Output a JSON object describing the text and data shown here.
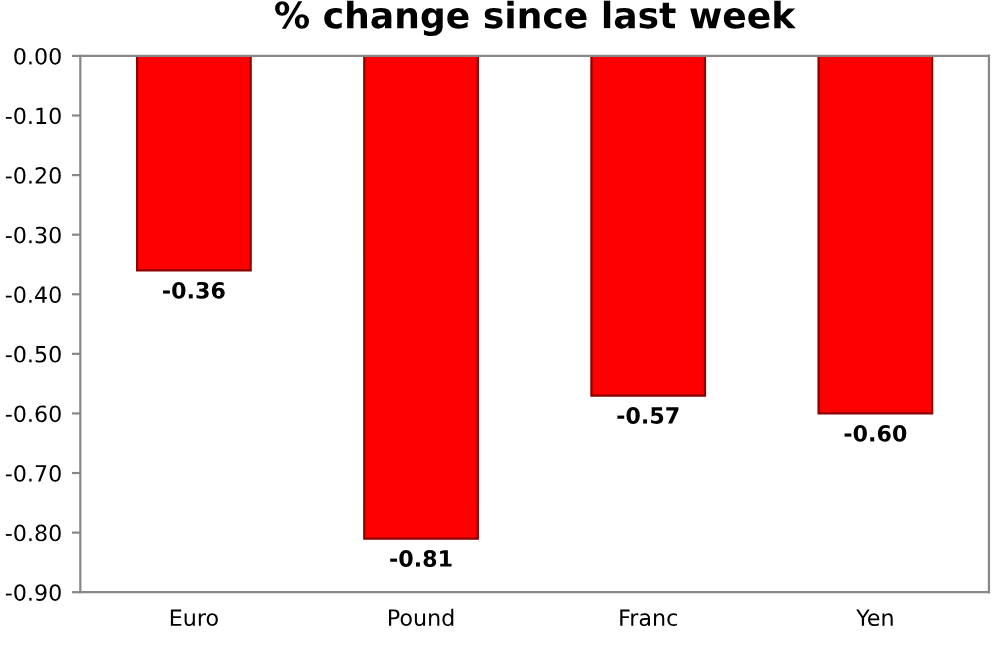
{
  "chart_data": {
    "type": "bar",
    "title": "% change since last week",
    "categories": [
      "Euro",
      "Pound",
      "Franc",
      "Yen"
    ],
    "values": [
      -0.36,
      -0.81,
      -0.57,
      -0.6
    ],
    "value_labels": [
      "-0.36",
      "-0.81",
      "-0.57",
      "-0.60"
    ],
    "color": "#ff0000",
    "ylim": [
      -0.9,
      0
    ],
    "yticks": [
      {
        "value": 0,
        "label": "0.00"
      },
      {
        "value": -0.1,
        "label": "-0.10"
      },
      {
        "value": -0.2,
        "label": "-0.20"
      },
      {
        "value": -0.3,
        "label": "-0.30"
      },
      {
        "value": -0.4,
        "label": "-0.40"
      },
      {
        "value": -0.5,
        "label": "-0.50"
      },
      {
        "value": -0.6,
        "label": "-0.60"
      },
      {
        "value": -0.7,
        "label": "-0.70"
      },
      {
        "value": -0.8,
        "label": "-0.80"
      },
      {
        "value": -0.9,
        "label": "-0.90"
      }
    ],
    "grid": false,
    "legend": false
  }
}
